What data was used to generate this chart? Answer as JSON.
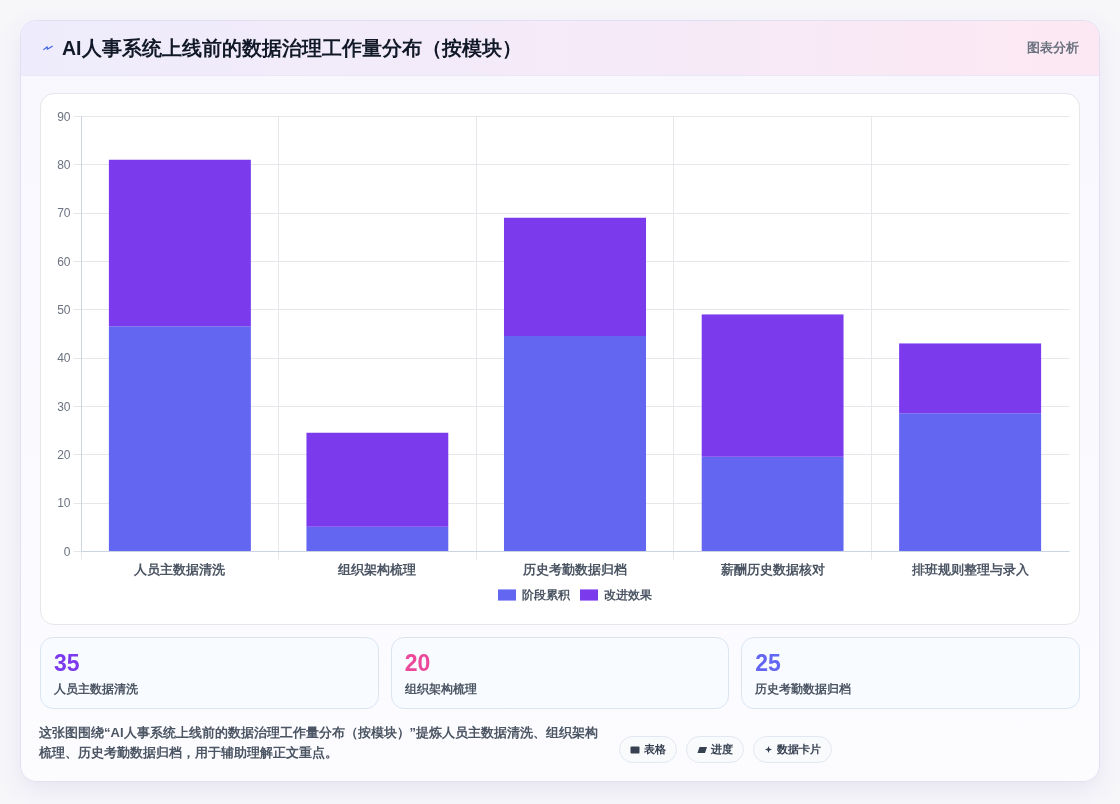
{
  "chart_data": [
    {
      "type": "bar",
      "title": "AI人事系统上线前的数据治理工作量分布（按模块）",
      "annotations": [
        "图表分析",
        "这张图围绕“AI人事系统上线前的数据治理工作量分布（按模块）”提炼人员主数据清洗、组织架构梳理、历史考勤数据归档，用于辅助理解正文重点。",
        "表格",
        "进度",
        "数据卡片"
      ],
      "categories": [
        "人员主数据清洗",
        "组织架构梳理",
        "历史考勤数据归档",
        "薪酬历史数据核对",
        "排班规则整理与录入"
      ],
      "series": [
        {
          "name": "阶段累积",
          "color": "#6366f1",
          "values": [
            46.5,
            5,
            44.5,
            19.5,
            28.5
          ]
        },
        {
          "name": "改进效果",
          "color": "#7c3aed",
          "values": [
            34.5,
            19.5,
            24.5,
            29.5,
            14.5
          ]
        }
      ],
      "stacked": true,
      "ylim": [
        0,
        90
      ],
      "yticks": [
        0,
        10,
        20,
        30,
        40,
        50,
        60,
        70,
        80,
        90
      ],
      "grid": true,
      "legend": "bottom"
    },
    {
      "type": "other",
      "categories": [
        "人员主数据清洗",
        "组织架构梳理",
        "历史考勤数据归档"
      ],
      "values": [
        35,
        20,
        25
      ],
      "data_labels": true
    }
  ]
}
